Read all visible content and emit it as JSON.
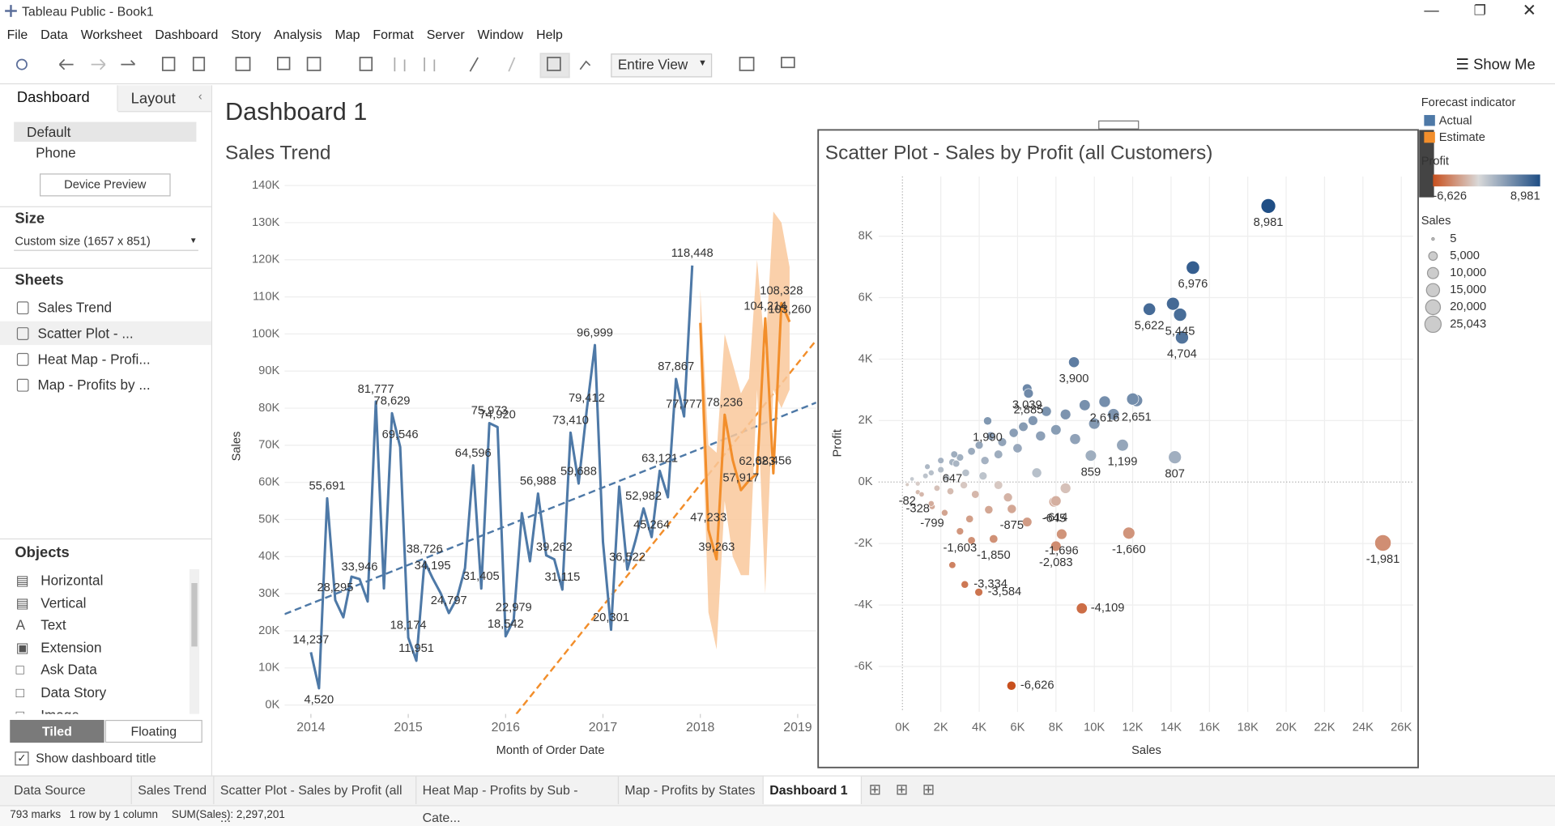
{
  "window": {
    "title": "Tableau Public - Book1"
  },
  "menu": [
    "File",
    "Data",
    "Worksheet",
    "Dashboard",
    "Story",
    "Analysis",
    "Map",
    "Format",
    "Server",
    "Window",
    "Help"
  ],
  "toolbar": {
    "fit": "Entire View",
    "show_me": "Show Me"
  },
  "left_panel": {
    "tabs": [
      "Dashboard",
      "Layout"
    ],
    "devices": [
      "Default",
      "Phone"
    ],
    "device_preview": "Device Preview",
    "size_label": "Size",
    "size_value": "Custom size (1657 x 851)",
    "sheets_label": "Sheets",
    "sheets": [
      "Sales Trend",
      "Scatter Plot - ...",
      "Heat Map - Profi...",
      "Map - Profits by ..."
    ],
    "objects_label": "Objects",
    "objects": [
      "Horizontal",
      "Vertical",
      "Text",
      "Extension",
      "Ask Data",
      "Data Story",
      "Image"
    ],
    "layout_modes": [
      "Tiled",
      "Floating"
    ],
    "show_title": "Show dashboard title"
  },
  "dashboard_title": "Dashboard 1",
  "sales_trend": {
    "type": "line",
    "title": "Sales Trend",
    "x_label": "Month of Order Date",
    "y_label": "Sales",
    "xlim": [
      2013.73,
      2019.19
    ],
    "xticks": [
      2014,
      2015,
      2016,
      2017,
      2018,
      2019
    ],
    "ylim": [
      -2400,
      141900
    ],
    "yticks": [
      {
        "value": 0,
        "label": "0K"
      },
      {
        "value": 10000,
        "label": "10K"
      },
      {
        "value": 20000,
        "label": "20K"
      },
      {
        "value": 30000,
        "label": "30K"
      },
      {
        "value": 40000,
        "label": "40K"
      },
      {
        "value": 50000,
        "label": "50K"
      },
      {
        "value": 60000,
        "label": "60K"
      },
      {
        "value": 70000,
        "label": "70K"
      },
      {
        "value": 80000,
        "label": "80K"
      },
      {
        "value": 90000,
        "label": "90K"
      },
      {
        "value": 100000,
        "label": "100K"
      },
      {
        "value": 110000,
        "label": "110K"
      },
      {
        "value": 120000,
        "label": "120K"
      },
      {
        "value": 130000,
        "label": "130K"
      },
      {
        "value": 140000,
        "label": "140K"
      }
    ],
    "grid": true,
    "series": [
      {
        "name": "Actual",
        "color": "#4e79a7",
        "x": [
          2014,
          2014.083,
          2014.167,
          2014.25,
          2014.333,
          2014.417,
          2014.5,
          2014.583,
          2014.667,
          2014.75,
          2014.833,
          2014.917,
          2015,
          2015.083,
          2015.167,
          2015.25,
          2015.333,
          2015.417,
          2015.5,
          2015.583,
          2015.667,
          2015.75,
          2015.833,
          2015.917,
          2016,
          2016.083,
          2016.167,
          2016.25,
          2016.333,
          2016.417,
          2016.5,
          2016.583,
          2016.667,
          2016.75,
          2016.833,
          2016.917,
          2017,
          2017.083,
          2017.167,
          2017.25,
          2017.333,
          2017.417,
          2017.5,
          2017.583,
          2017.667,
          2017.75,
          2017.833,
          2017.917
        ],
        "values": [
          14237,
          4520,
          55691,
          28295,
          23648,
          34595,
          33946,
          27909,
          81777,
          31453,
          78629,
          69546,
          18174,
          11951,
          38726,
          34195,
          30132,
          24797,
          28765,
          36898,
          64596,
          31405,
          75973,
          74920,
          18542,
          22979,
          51716,
          38750,
          56988,
          40344,
          39262,
          31115,
          73410,
          59688,
          79412,
          96999,
          43971,
          20301,
          58872,
          36522,
          44261,
          52982,
          45264,
          63121,
          56000,
          87867,
          77777,
          118448
        ],
        "value_labels": [
          "14,237",
          "4,520",
          "55,691",
          "28,295",
          null,
          null,
          "33,946",
          null,
          "81,777",
          null,
          "78,629",
          "69,546",
          "18,174",
          "11,951",
          "38,726",
          "34,195",
          null,
          "24,797",
          null,
          null,
          "64,596",
          "31,405",
          "75,973",
          "74,920",
          "18,542",
          "22,979",
          null,
          null,
          "56,988",
          null,
          "39,262",
          "31,115",
          "73,410",
          "59,688",
          "79,412",
          "96,999",
          null,
          "20,301",
          null,
          "36,522",
          null,
          "52,982",
          "45,264",
          "63,121",
          null,
          "87,867",
          "77,777",
          "118,448"
        ]
      },
      {
        "name": "Estimate",
        "color": "#f28e2b",
        "band_color": "#f9c89b",
        "x": [
          2018,
          2018.083,
          2018.167,
          2018.25,
          2018.333,
          2018.417,
          2018.5,
          2018.583,
          2018.667,
          2018.75,
          2018.833,
          2018.917
        ],
        "values": [
          103000,
          47233,
          39263,
          78236,
          66000,
          57917,
          60500,
          62383,
          104214,
          62456,
          108328,
          103260
        ],
        "value_labels": [
          null,
          "47,233",
          "39,263",
          "78,236",
          null,
          "57,917",
          null,
          "62,383",
          "104,214",
          "62,456",
          "108,328",
          "103,260"
        ],
        "band_upper": [
          112000,
          70000,
          68000,
          100000,
          92000,
          84000,
          88000,
          120000,
          95000,
          133000,
          130000,
          118000
        ],
        "band_lower": [
          95000,
          25000,
          15000,
          55000,
          40000,
          35000,
          35000,
          85000,
          30000,
          85000,
          80000,
          85000
        ]
      }
    ],
    "trend_lines": [
      {
        "color": "#4e79a7",
        "x": [
          2013.73,
          2019.19
        ],
        "values": [
          24500,
          81500
        ]
      },
      {
        "color": "#f28e2b",
        "x": [
          2016.11,
          2019.19
        ],
        "values": [
          -2400,
          98300
        ]
      }
    ]
  },
  "scatter": {
    "type": "scatter",
    "title": "Scatter Plot - Sales by Profit (all Customers)",
    "x_label": "Sales",
    "y_label": "Profit",
    "xlim": [
      -1240,
      26620
    ],
    "xticks": [
      {
        "value": 0,
        "label": "0K"
      },
      {
        "value": 2000,
        "label": "2K"
      },
      {
        "value": 4000,
        "label": "4K"
      },
      {
        "value": 6000,
        "label": "6K"
      },
      {
        "value": 8000,
        "label": "8K"
      },
      {
        "value": 10000,
        "label": "10K"
      },
      {
        "value": 12000,
        "label": "12K"
      },
      {
        "value": 14000,
        "label": "14K"
      },
      {
        "value": 16000,
        "label": "16K"
      },
      {
        "value": 18000,
        "label": "18K"
      },
      {
        "value": 20000,
        "label": "20K"
      },
      {
        "value": 22000,
        "label": "22K"
      },
      {
        "value": 24000,
        "label": "24K"
      },
      {
        "value": 26000,
        "label": "26K"
      }
    ],
    "ylim": [
      -7480,
      9940
    ],
    "yticks": [
      {
        "value": -6000,
        "label": "-6K"
      },
      {
        "value": -4000,
        "label": "-4K"
      },
      {
        "value": -2000,
        "label": "-2K"
      },
      {
        "value": 0,
        "label": "0K"
      },
      {
        "value": 2000,
        "label": "2K"
      },
      {
        "value": 4000,
        "label": "4K"
      },
      {
        "value": 6000,
        "label": "6K"
      },
      {
        "value": 8000,
        "label": "8K"
      }
    ],
    "grid": true,
    "x": [
      19070,
      15140,
      12870,
      14470,
      14100,
      14570,
      8940,
      6500,
      6570,
      10540,
      12200,
      4440,
      11470,
      9820,
      14200,
      2600,
      250,
      800,
      1550,
      7900,
      8000,
      5700,
      3000,
      4750,
      8000,
      8300,
      11800,
      25043,
      3250,
      3980,
      9350,
      5680,
      500,
      800,
      1200,
      1500,
      1800,
      2000,
      2300,
      2500,
      2800,
      3000,
      3300,
      3600,
      3800,
      4000,
      4300,
      4600,
      5000,
      5200,
      5500,
      5800,
      6000,
      6300,
      6800,
      7200,
      7500,
      8000,
      8500,
      9000,
      9500,
      10000,
      11000,
      12000,
      1000,
      1500,
      2200,
      3500,
      4500,
      6500,
      2600,
      3600,
      7000,
      8500,
      1300,
      2000,
      2700,
      3200,
      4200,
      5000
    ],
    "values": [
      8981,
      6976,
      5622,
      5445,
      5800,
      4704,
      3900,
      3039,
      2885,
      2616,
      2651,
      1990,
      1199,
      859,
      807,
      647,
      -82,
      -328,
      -799,
      -645,
      -614,
      -875,
      -1603,
      -1850,
      -2083,
      -1696,
      -1660,
      -1981,
      -3334,
      -3584,
      -4109,
      -6626,
      100,
      -50,
      200,
      300,
      -200,
      400,
      150,
      -300,
      600,
      800,
      300,
      1000,
      -400,
      1200,
      700,
      1500,
      900,
      1300,
      -500,
      1600,
      1100,
      1800,
      2000,
      1500,
      2300,
      1700,
      2200,
      1400,
      2500,
      1900,
      2200,
      2700,
      -400,
      -700,
      -1000,
      -1200,
      -900,
      -1300,
      -2700,
      -1900,
      300,
      -200,
      500,
      700,
      900,
      -100,
      200,
      -100
    ],
    "value_labels": [
      "8,981",
      "6,976",
      "5,622",
      "5,445",
      null,
      "4,704",
      "3,900",
      "3,039",
      "2,885",
      "2,616",
      "2,651",
      "1,990",
      "1,199",
      "859",
      "807",
      "647",
      "-82",
      "-328",
      "-799",
      "-645",
      "-614",
      "-875",
      "-1,603",
      "-1,850",
      "-2,083",
      "-1,696",
      "-1,660",
      "-1,981",
      "-3,334",
      "-3,584",
      "-4,109",
      "-6,626",
      null,
      null,
      null,
      null,
      null,
      null,
      null,
      null,
      null,
      null,
      null,
      null,
      null,
      null,
      null,
      null,
      null,
      null,
      null,
      null,
      null,
      null,
      null,
      null,
      null,
      null,
      null,
      null,
      null,
      null,
      null,
      null,
      null,
      null,
      null,
      null,
      null,
      null,
      null,
      null,
      null,
      null,
      null,
      null,
      null,
      null,
      null,
      null
    ],
    "colors": {
      "negative": "#c8501e",
      "zero": "#d9d9d9",
      "positive": "#1f4e85"
    }
  },
  "legends": {
    "forecast": {
      "title": "Forecast indicator",
      "items": [
        {
          "name": "Actual",
          "color": "#4e79a7"
        },
        {
          "name": "Estimate",
          "color": "#f28e2b"
        }
      ]
    },
    "profit": {
      "title": "Profit",
      "ends": [
        {
          "value": -6626,
          "label": "-6,626"
        },
        {
          "value": 8981,
          "label": "8,981"
        }
      ]
    },
    "sales": {
      "title": "Sales",
      "items": [
        5,
        {
          "value": 5000,
          "label": "5,000"
        },
        {
          "value": 10000,
          "label": "10,000"
        },
        {
          "value": 15000,
          "label": "15,000"
        },
        {
          "value": 20000,
          "label": "20,000"
        },
        {
          "value": 25043,
          "label": "25,043"
        }
      ]
    }
  },
  "tabs": [
    "Data Source",
    "Sales Trend",
    "Scatter Plot - Sales by Profit (all ...",
    "Heat Map - Profits by Sub - Cate...",
    "Map - Profits by States",
    "Dashboard 1"
  ],
  "status": [
    "793 marks",
    "1 row by 1 column",
    "SUM(Sales): 2,297,201"
  ]
}
